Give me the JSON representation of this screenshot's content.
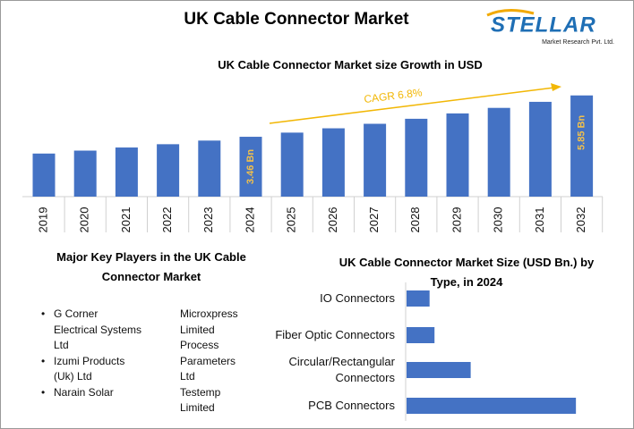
{
  "title": "UK Cable Connector Market",
  "logo": {
    "name": "STELLAR",
    "tagline": "Market Research Pvt. Ltd."
  },
  "key_players": {
    "heading": "Major Key Players in the UK Cable Connector Market",
    "column_1": [
      "G Corner Electrical Systems Ltd",
      "Izumi Products (Uk) Ltd",
      "Narain Solar"
    ],
    "column_2": [
      "Microxpress Limited",
      "Process Parameters Ltd",
      "Testemp Limited"
    ]
  },
  "chart_data": [
    {
      "type": "bar",
      "title": "UK Cable Connector Market size Growth in USD",
      "categories": [
        "2019",
        "2020",
        "2021",
        "2022",
        "2023",
        "2024",
        "2025",
        "2026",
        "2027",
        "2028",
        "2029",
        "2030",
        "2031",
        "2032"
      ],
      "values": [
        2.49,
        2.66,
        2.84,
        3.03,
        3.24,
        3.46,
        3.7,
        3.95,
        4.21,
        4.5,
        4.81,
        5.13,
        5.48,
        5.85
      ],
      "value_labels": [
        null,
        null,
        null,
        null,
        null,
        "3.46 Bn",
        null,
        null,
        null,
        null,
        null,
        null,
        null,
        "5.85 Bn"
      ],
      "color": "#4472c4",
      "ylim": [
        0,
        6.2
      ],
      "annotation": "CAGR 6.8%",
      "annotation_color": "#f2b705"
    },
    {
      "type": "hbar",
      "title": "UK Cable Connector Market Size (USD Bn.) by Type, in 2024",
      "categories": [
        "IO Connectors",
        "Fiber Optic Connectors",
        "Circular/Rectangular Connectors",
        "PCB Connectors"
      ],
      "values": [
        0.28,
        0.34,
        0.78,
        2.06
      ],
      "color": "#4472c4",
      "xlim": [
        0,
        2.2
      ]
    }
  ]
}
